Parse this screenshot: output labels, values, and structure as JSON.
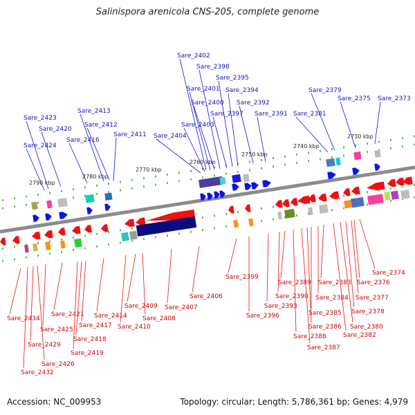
{
  "title": "Salinispora arenicola CNS-205, complete genome",
  "footer": {
    "accession": "Accession: NC_009953",
    "topology": "Topology: circular; Length: 5,786,361 bp; Genes: 4,979"
  },
  "colors": {
    "backbone": "#8c8c8c",
    "forward": "#0a14e6",
    "reverse": "#ee1111",
    "forward_label": "#1010c8",
    "reverse_label": "#cc0000",
    "tick": "#1f9a1f"
  },
  "scale_labels": [
    "2790 kbp",
    "2780 kbp",
    "2770 kbp",
    "2760 kbp",
    "2750 kbp",
    "2740 kbp",
    "2730 kbp"
  ],
  "forward_genes": [
    "Sare_2424",
    "Sare_2423",
    "Sare_2420",
    "Sare_2416",
    "Sare_2413",
    "Sare_2412",
    "Sare_2411",
    "Sare_2404",
    "Sare_2403",
    "Sare_2402",
    "Sare_2401",
    "Sare_2400",
    "Sare_2398",
    "Sare_2397",
    "Sare_2395",
    "Sare_2394",
    "Sare_2392",
    "Sare_2391",
    "Sare_2381",
    "Sare_2379",
    "Sare_2375",
    "Sare_2373"
  ],
  "reverse_genes": [
    "Sare_2434",
    "Sare_2432",
    "Sare_2429",
    "Sare_2426",
    "Sare_2425",
    "Sare_2421",
    "Sare_2419",
    "Sare_2418",
    "Sare_2417",
    "Sare_2414",
    "Sare_2410",
    "Sare_2409",
    "Sare_2408",
    "Sare_2407",
    "Sare_2406",
    "Sare_2399",
    "Sare_2396",
    "Sare_2393",
    "Sare_2390",
    "Sare_2389",
    "Sare_2388",
    "Sare_2387",
    "Sare_2386",
    "Sare_2385",
    "Sare_2384",
    "Sare_2383",
    "Sare_2382",
    "Sare_2380",
    "Sare_2378",
    "Sare_2377",
    "Sare_2376",
    "Sare_2374"
  ]
}
